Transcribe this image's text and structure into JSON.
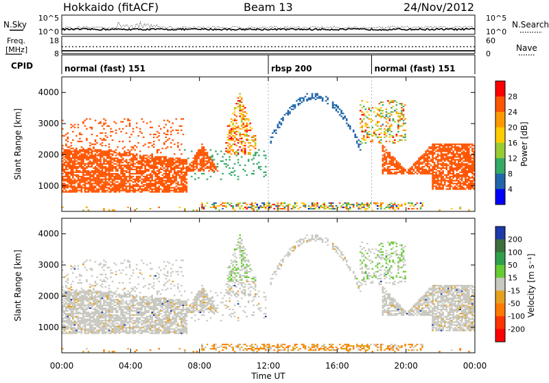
{
  "header": {
    "station": "Hokkaido (fitACF)",
    "beam": "Beam 13",
    "date": "24/Nov/2012"
  },
  "noise_panel": {
    "left_label": "N.Sky",
    "right_label": "N.Search",
    "left_ticks": [
      "10^5",
      "10^0"
    ],
    "right_ticks": [
      "10^5",
      "10^0"
    ]
  },
  "freq_panel": {
    "left_label_line1": "Freq.",
    "left_label_line2": "[MHz]",
    "left_ticks": [
      "18",
      "8"
    ],
    "right_label": "Nave",
    "right_ticks": [
      "60",
      "0"
    ]
  },
  "cpid": {
    "label": "CPID",
    "segments": [
      {
        "name": "normal (fast) 151",
        "start_h": 0,
        "end_h": 12
      },
      {
        "name": "rbsp 200",
        "start_h": 12,
        "end_h": 18
      },
      {
        "name": "normal (fast) 151",
        "start_h": 18,
        "end_h": 24
      }
    ]
  },
  "chart_data": [
    {
      "type": "heatmap",
      "title": "Power",
      "xlabel": "",
      "ylabel": "Slant Range [km]",
      "xlim": [
        0,
        24
      ],
      "ylim": [
        180,
        4500
      ],
      "yticks": [
        "1000",
        "2000",
        "3000",
        "4000"
      ],
      "colorbar": {
        "label": "Power [dB]",
        "ticks": [
          "28",
          "24",
          "20",
          "16",
          "12",
          "8",
          "4"
        ],
        "colors": [
          "#ff0000",
          "#ff5500",
          "#ff9900",
          "#ffcc00",
          "#99cc33",
          "#33aa66",
          "#2266aa",
          "#0000ff"
        ]
      }
    },
    {
      "type": "heatmap",
      "title": "Velocity",
      "xlabel": "Time UT",
      "ylabel": "Slant Range [km]",
      "xlim": [
        0,
        24
      ],
      "ylim": [
        180,
        4500
      ],
      "xticks": [
        "00:00",
        "04:00",
        "08:00",
        "12:00",
        "16:00",
        "20:00",
        "00:00"
      ],
      "yticks": [
        "1000",
        "2000",
        "3000",
        "4000"
      ],
      "colorbar": {
        "label": "Velocity [m s⁻¹]",
        "ticks": [
          "200",
          "100",
          "50",
          "15",
          "-15",
          "-50",
          "-100",
          "-200"
        ],
        "colors": [
          "#1c3aa8",
          "#3d6e3d",
          "#2fa14b",
          "#66cc33",
          "#c8c8c0",
          "#e6a020",
          "#ff7a00",
          "#ff3300",
          "#ff0000"
        ]
      }
    }
  ]
}
